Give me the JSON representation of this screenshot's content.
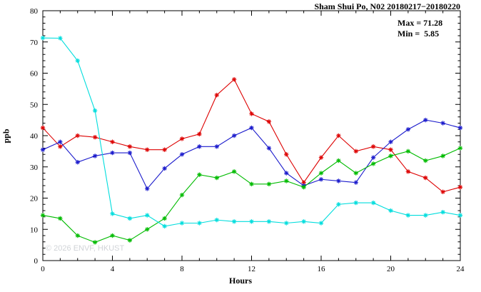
{
  "header": {
    "title": "Sham Shui Po, N02 20180217−20180220"
  },
  "annotation": {
    "max_label": "Max = 71.28",
    "min_label": "Min =  5.85"
  },
  "watermark": "© 2026 ENVF, HKUST",
  "chart_data": {
    "type": "line",
    "title": "Sham Shui Po, N02 20180217−20180220",
    "xlabel": "Hours",
    "ylabel": "ppb",
    "xlim": [
      0,
      24
    ],
    "ylim": [
      0,
      80
    ],
    "x_major_ticks": [
      0,
      4,
      8,
      12,
      16,
      20,
      24
    ],
    "x_minor_step": 1,
    "y_major_ticks": [
      0,
      10,
      20,
      30,
      40,
      50,
      60,
      70,
      80
    ],
    "y_minor_step": 2,
    "grid": false,
    "legend_position": "none",
    "stats": {
      "max": 71.28,
      "min": 5.85
    },
    "x": [
      0,
      1,
      2,
      3,
      4,
      5,
      6,
      7,
      8,
      9,
      10,
      11,
      12,
      13,
      14,
      15,
      16,
      17,
      18,
      19,
      20,
      21,
      22,
      23,
      24
    ],
    "series": [
      {
        "name": "red-series",
        "color": "#dd0000",
        "values": [
          42.5,
          36.5,
          40,
          39.5,
          38,
          36.5,
          35.5,
          35.5,
          39,
          40.5,
          53,
          58,
          47,
          44.5,
          34,
          25,
          33,
          40,
          35,
          36.5,
          35.5,
          28.5,
          26.5,
          22,
          23.5
        ]
      },
      {
        "name": "blue-series",
        "color": "#1b1bcc",
        "values": [
          35.5,
          38,
          31.5,
          33.5,
          34.5,
          34.5,
          23,
          29.5,
          34,
          36.5,
          36.5,
          40,
          42.5,
          36,
          28,
          24,
          26,
          25.5,
          25,
          33,
          38,
          42,
          45,
          44,
          42.5
        ]
      },
      {
        "name": "green-series",
        "color": "#00bb00",
        "values": [
          14.5,
          13.5,
          8,
          5.85,
          8,
          6.5,
          10,
          13.5,
          21,
          27.5,
          26.5,
          28.5,
          24.5,
          24.5,
          25.5,
          23.5,
          28,
          32,
          28,
          31,
          33.5,
          35,
          32,
          33.5,
          36
        ]
      },
      {
        "name": "cyan-series",
        "color": "#00dddd",
        "values": [
          71.28,
          71.2,
          64,
          48,
          15,
          13.5,
          14.5,
          11,
          12,
          12,
          13,
          12.5,
          12.5,
          12.5,
          12,
          12.5,
          12,
          18,
          18.5,
          18.5,
          16,
          14.5,
          14.5,
          15.5,
          14.5
        ]
      }
    ]
  }
}
